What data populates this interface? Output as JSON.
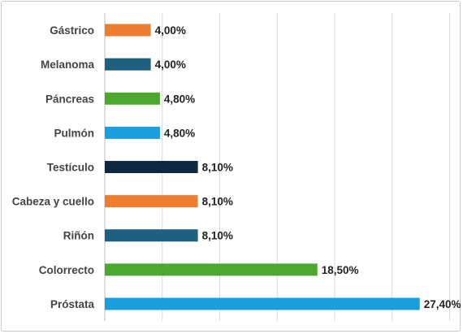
{
  "chart_data": {
    "type": "bar",
    "orientation": "horizontal",
    "categories": [
      "Gástrico",
      "Melanoma",
      "Páncreas",
      "Pulmón",
      "Testículo",
      "Cabeza y cuello",
      "Riñón",
      "Colorrecto",
      "Próstata"
    ],
    "values": [
      4.0,
      4.0,
      4.8,
      4.8,
      8.1,
      8.1,
      8.1,
      18.5,
      27.4
    ],
    "value_labels": [
      "4,00%",
      "4,00%",
      "4,80%",
      "4,80%",
      "8,10%",
      "8,10%",
      "8,10%",
      "18,50%",
      "27,40%"
    ],
    "bar_colors": [
      "#ED7D31",
      "#1F5F7F",
      "#4EA72E",
      "#1A9FDC",
      "#0E2841",
      "#ED7D31",
      "#1F5F7F",
      "#4EA72E",
      "#1A9FDC"
    ],
    "title": "",
    "xlabel": "",
    "ylabel": "",
    "xlim": [
      0,
      30
    ],
    "grid": true,
    "legend": "none"
  }
}
